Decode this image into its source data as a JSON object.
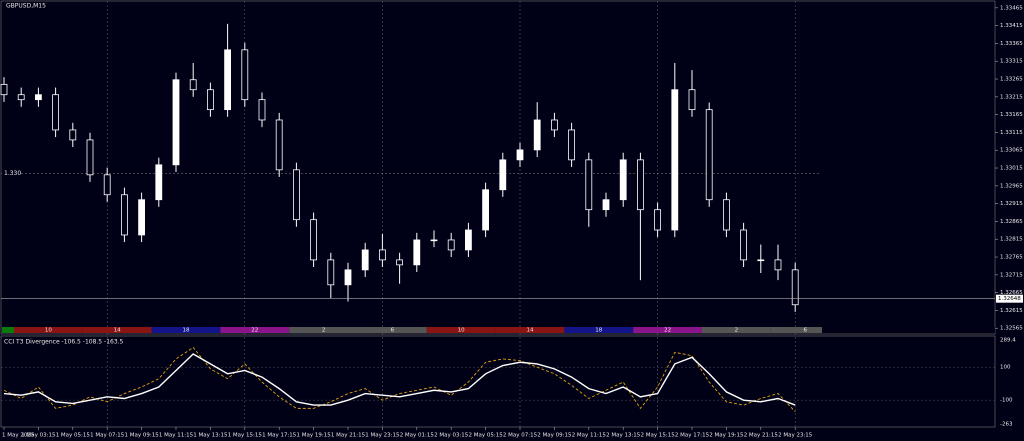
{
  "chart_data": {
    "type": "candlestick",
    "title": "GBPUSD,M15",
    "time_labels": [
      "1 May 2025",
      "1 May 03:15",
      "1 May 05:15",
      "1 May 07:15",
      "1 May 09:15",
      "1 May 11:15",
      "1 May 13:15",
      "1 May 15:15",
      "1 May 17:15",
      "1 May 19:15",
      "1 May 21:15",
      "1 May 23:15",
      "2 May 01:15",
      "2 May 03:15",
      "2 May 05:15",
      "2 May 07:15",
      "2 May 09:15",
      "2 May 11:15",
      "2 May 13:15",
      "2 May 15:15",
      "2 May 17:15",
      "2 May 19:15",
      "2 May 21:15",
      "2 May 23:15"
    ],
    "open": [
      1.3325,
      1.33221,
      1.33207,
      1.33221,
      1.33122,
      1.33094,
      1.32996,
      1.3294,
      1.32827,
      1.32926,
      1.33024,
      1.33263,
      1.33235,
      1.33179,
      1.33347,
      1.33207,
      1.3315,
      1.3301,
      1.3287,
      1.32757,
      1.32687,
      1.32729,
      1.32785,
      1.32757,
      1.32743,
      1.32813,
      1.32813,
      1.32785,
      1.32841,
      1.32954,
      1.33038,
      1.33066,
      1.3315,
      1.33122,
      1.33038,
      1.32898,
      1.32926,
      1.33038,
      1.32898,
      1.32841,
      1.33235,
      1.33179,
      1.32926,
      1.32841,
      1.32757,
      1.32757,
      1.32729
    ],
    "high": [
      1.3327,
      1.33241,
      1.33241,
      1.33241,
      1.33142,
      1.33114,
      1.33016,
      1.3296,
      1.32946,
      1.33044,
      1.33283,
      1.3331,
      1.33255,
      1.3342,
      1.33367,
      1.33227,
      1.3317,
      1.3303,
      1.3289,
      1.32777,
      1.32749,
      1.32805,
      1.3283,
      1.32777,
      1.32833,
      1.3284,
      1.32833,
      1.32861,
      1.32974,
      1.33058,
      1.33086,
      1.332,
      1.3317,
      1.33142,
      1.33058,
      1.32946,
      1.33058,
      1.33058,
      1.32918,
      1.3331,
      1.3329,
      1.33199,
      1.32946,
      1.32861,
      1.328,
      1.328,
      1.32749
    ],
    "low": [
      1.33201,
      1.33187,
      1.33187,
      1.33102,
      1.33074,
      1.32976,
      1.3292,
      1.32807,
      1.32807,
      1.32906,
      1.33004,
      1.33215,
      1.33159,
      1.33159,
      1.33187,
      1.3313,
      1.3299,
      1.3285,
      1.32737,
      1.3265,
      1.3264,
      1.32709,
      1.32737,
      1.3269,
      1.32723,
      1.32793,
      1.32765,
      1.32765,
      1.32821,
      1.32934,
      1.33018,
      1.33046,
      1.33102,
      1.33018,
      1.3285,
      1.32878,
      1.32906,
      1.327,
      1.32821,
      1.32821,
      1.33159,
      1.32906,
      1.32821,
      1.32737,
      1.3272,
      1.327,
      1.32611
    ],
    "close": [
      1.33221,
      1.33207,
      1.33221,
      1.33122,
      1.33094,
      1.32996,
      1.3294,
      1.32827,
      1.32926,
      1.33024,
      1.33263,
      1.33235,
      1.33179,
      1.33347,
      1.33207,
      1.3315,
      1.3301,
      1.3287,
      1.32757,
      1.32687,
      1.32729,
      1.32785,
      1.32757,
      1.32743,
      1.32813,
      1.32813,
      1.32785,
      1.32841,
      1.32954,
      1.33038,
      1.33066,
      1.3315,
      1.33122,
      1.33038,
      1.32898,
      1.32926,
      1.33038,
      1.32898,
      1.32841,
      1.33235,
      1.33179,
      1.32926,
      1.32841,
      1.32757,
      1.32757,
      1.32729,
      1.32631
    ],
    "ylim": [
      1.32546,
      1.33487
    ],
    "yticks": [
      1.33465,
      1.33415,
      1.33365,
      1.33315,
      1.33265,
      1.33215,
      1.33165,
      1.33115,
      1.33065,
      1.33015,
      1.32965,
      1.32915,
      1.32865,
      1.32815,
      1.32765,
      1.32715,
      1.32665,
      1.32615,
      1.32565
    ],
    "level": {
      "value": 1.33,
      "label": "1.330"
    },
    "last_price": 1.32648,
    "session_bar": {
      "hours": [
        "10",
        "14",
        "18",
        "22",
        "2",
        "6",
        "10",
        "14",
        "18",
        "22",
        "2",
        "6"
      ],
      "colors": [
        "#8a1414",
        "#8a1414",
        "#14148a",
        "#8a148a",
        "#555555",
        "#555555",
        "#8a1414",
        "#8a1414",
        "#14148a",
        "#8a148a",
        "#555555",
        "#555555"
      ]
    },
    "indicator": {
      "type": "line",
      "title": "CCI T3 Divergence -106.5 -108.5 -163.5",
      "ylim": [
        -263,
        289.4
      ],
      "yticks": [
        289.4,
        100,
        -100,
        -263
      ],
      "series": [
        {
          "color": "#e0a010",
          "values": [
            -40,
            -90,
            -20,
            -150,
            -130,
            -80,
            -110,
            -60,
            -20,
            30,
            150,
            220,
            90,
            30,
            120,
            10,
            -80,
            -150,
            -150,
            -110,
            -60,
            -30,
            -100,
            -60,
            -40,
            -20,
            -70,
            10,
            130,
            150,
            140,
            100,
            60,
            -10,
            -90,
            -40,
            10,
            -150,
            -20,
            190,
            170,
            10,
            -110,
            -130,
            -90,
            -60,
            -170
          ]
        },
        {
          "color": "#ffffff",
          "values": [
            -60,
            -70,
            -50,
            -110,
            -120,
            -100,
            -80,
            -90,
            -60,
            -20,
            80,
            180,
            120,
            60,
            80,
            40,
            -30,
            -110,
            -130,
            -130,
            -100,
            -60,
            -70,
            -80,
            -60,
            -40,
            -50,
            -30,
            60,
            110,
            130,
            120,
            90,
            40,
            -30,
            -60,
            -20,
            -80,
            -60,
            120,
            160,
            60,
            -50,
            -100,
            -110,
            -90,
            -130
          ]
        }
      ]
    }
  }
}
